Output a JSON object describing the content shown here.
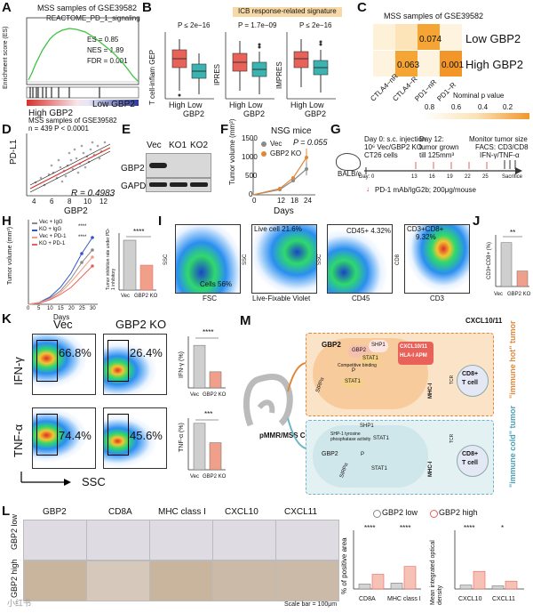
{
  "panels": {
    "A": {
      "label": "A",
      "title": "MSS samples of GSE39582",
      "signature": "REACTOME_PD_1_signaling",
      "es": "ES = 0.85",
      "nes": "NES = 1.89",
      "fdr": "FDR = 0.001",
      "ylabel": "Enrichment score (ES)",
      "left": "High GBP2",
      "right": "Low GBP2"
    },
    "B": {
      "label": "B",
      "banner": "ICB response-related signature",
      "plots": [
        {
          "p": "P ≤ 2e−16",
          "ylabel": "T cell-inflam GEP"
        },
        {
          "p": "P = 1.7e−09",
          "ylabel": "IPRES"
        },
        {
          "p": "P ≤ 2e−16",
          "ylabel": "IMPRES"
        }
      ],
      "xticks": [
        "High",
        "Low"
      ],
      "xlabel": "GBP2"
    },
    "C": {
      "label": "C",
      "title": "MSS samples of GSE39582",
      "rows": [
        "Low GBP2",
        "High GBP2"
      ],
      "cols": [
        "CTLA4−nR",
        "CTLA4−R",
        "PD1−nR",
        "PD1−R"
      ],
      "cells": [
        [
          "",
          "",
          "0.074",
          ""
        ],
        [
          "",
          "0.063",
          "",
          "0.001"
        ]
      ],
      "legend_title": "Nominal p value",
      "legend_ticks": [
        "0.8",
        "0.6",
        "0.4",
        "0.2"
      ]
    },
    "D": {
      "label": "D",
      "title": "MSS samples of GSE39582",
      "subtitle": "n = 439 P < 0.0001",
      "ylabel": "PD-L1",
      "xlabel": "GBP2",
      "r": "R = 0.4983",
      "xticks": [
        "4",
        "6",
        "8",
        "10",
        "12"
      ]
    },
    "E": {
      "label": "E",
      "lanes": [
        "Vec",
        "KO1",
        "KO2"
      ],
      "rows": [
        "GBP2",
        "GAPDH"
      ]
    },
    "F": {
      "label": "F",
      "title": "NSG mice",
      "legend": [
        "Vec",
        "GBP2 KO"
      ],
      "p": "P = 0.055",
      "ylabel": "Tumor volume (mm³)",
      "xlabel": "Days",
      "xticks": [
        "0",
        "12",
        "18",
        "24"
      ],
      "yticks": [
        "0",
        "500",
        "1000",
        "1500"
      ]
    },
    "G": {
      "label": "G",
      "mouse": "BALB/c",
      "step1": "Day 0: s.c. injection",
      "step1b": "10⁶ Vec/GBP2 KO",
      "step1c": "CT26 cells",
      "step2": "Day 12:",
      "step2b": "tumor grown",
      "step2c": "till 125mm³",
      "step3": "Monitor tumor size",
      "step3b": "FACS: CD3/CD8",
      "step3c": "IFN-γ/TNF-α",
      "days": [
        "Day: 0",
        "13",
        "16",
        "19",
        "22",
        "25",
        "Sacrifice"
      ],
      "treat": "PD-1  mAb/IgG2b; 200μg/mouse"
    },
    "H": {
      "label": "H",
      "legend": [
        "Vec + IgG",
        "KO + IgG",
        "Vec + PD-1",
        "KO + PD-1"
      ],
      "stars": [
        "****",
        "****"
      ],
      "ylabel": "Tumor volume (mm³)",
      "xlabel": "Days",
      "xticks": [
        "0",
        "5",
        "10",
        "15",
        "20",
        "25",
        "30"
      ],
      "yticks": [
        "0",
        "500",
        "1000",
        "1500",
        "2000"
      ],
      "bar_ylabel": "Tumor inhibition rate under PD-1 inhibitory",
      "bar_stars": "****",
      "bar_x": [
        "Vec",
        "GBP2 KO"
      ]
    },
    "I": {
      "label": "I",
      "plot1_pct": "Cells 56%",
      "plot1_x": "FSC",
      "plot1_y": "SSC",
      "plot2_pct": "Live cell 21.6%",
      "plot2_x": "Live-Fixable Violet",
      "plot2_y": "SSC",
      "plot3_pct": "CD45+ 4.32%",
      "plot3_x": "CD45",
      "plot3_y": "SSC",
      "plot4_pct": "CD3+CD8+",
      "plot4_pct2": "9.32%",
      "plot4_x": "CD3",
      "plot4_y": "CD8"
    },
    "J": {
      "label": "J",
      "ylabel": "CD3+CD8+ (%)",
      "stars": "**",
      "x": [
        "Vec",
        "GBP2 KO"
      ]
    },
    "K": {
      "label": "K",
      "cols": [
        "Vec",
        "GBP2 KO"
      ],
      "rows": [
        "IFN-γ",
        "TNF-α"
      ],
      "pcts": [
        [
          "66.8%",
          "26.4%"
        ],
        [
          "74.4%",
          "45.6%"
        ]
      ],
      "xlabel": "SSC",
      "bar1_ylabel": "IFN-γ (%)",
      "bar1_stars": "****",
      "bar2_ylabel": "TNF-α (%)",
      "bar2_stars": "***",
      "bar_x": [
        "Vec",
        "GBP2 KO"
      ]
    },
    "M": {
      "label": "M",
      "crc": "pMMR/MSS CRC",
      "hot_label": "\"immune hot\" tumor",
      "cold_label": "\"immune cold\" tumor",
      "cxcl": "CXCL10/11",
      "cxcl2": "CXCL10/11",
      "hla": "HLA-I APM",
      "gbp2": "GBP2",
      "shp1": "SHP1",
      "stat1": "STAT1",
      "comp": "Competitive binding",
      "mhc": "MHC-I",
      "tcr": "TCR",
      "cd8": "CD8+",
      "tcell": "T cell",
      "shp1act": "SHP-1 tyrosine phosphatase activity",
      "sirpa": "SIRPα",
      "p": "P"
    },
    "L": {
      "label": "L",
      "cols": [
        "GBP2",
        "CD8A",
        "MHC class I",
        "CXCL10",
        "CXCL11"
      ],
      "rows": [
        "GBP2 low",
        "GBP2 high"
      ],
      "scale": "Scale bar = 100μm",
      "legend": [
        "GBP2 low",
        "GBP2 high"
      ],
      "chart1_ylabel": "% of positive area",
      "chart1_x": [
        "CD8A",
        "MHC class I"
      ],
      "chart1_stars": [
        "****",
        "****"
      ],
      "chart2_ylabel": "Mean integrated optical density",
      "chart2_x": [
        "CXCL10",
        "CXCL11"
      ],
      "chart2_stars": [
        "****",
        "*"
      ],
      "watermark": "小红书"
    }
  },
  "colors": {
    "high": "#e8625a",
    "low": "#3bb3b0",
    "orange": "#e0883a",
    "gray": "#8a8a8a",
    "navy": "#2b3a8c",
    "salmon": "#f0a08a"
  },
  "chart_data": [
    {
      "type": "bar",
      "panel": "J",
      "categories": [
        "Vec",
        "GBP2 KO"
      ],
      "values": [
        1.7,
        0.6
      ],
      "ylabel": "CD3+CD8+ (%)"
    },
    {
      "type": "bar",
      "panel": "K-IFN",
      "categories": [
        "Vec",
        "GBP2 KO"
      ],
      "values": [
        66,
        25
      ],
      "ylabel": "IFN-γ (%)"
    },
    {
      "type": "bar",
      "panel": "K-TNF",
      "categories": [
        "Vec",
        "GBP2 KO"
      ],
      "values": [
        72,
        42
      ],
      "ylabel": "TNF-α (%)"
    },
    {
      "type": "bar",
      "panel": "L1",
      "categories": [
        "CD8A",
        "MHC class I"
      ],
      "series": [
        {
          "name": "GBP2 low",
          "values": [
            0.5,
            0.6
          ]
        },
        {
          "name": "GBP2 high",
          "values": [
            1.5,
            2.3
          ]
        }
      ],
      "ylabel": "% of positive area",
      "ylim": [
        0,
        6
      ]
    },
    {
      "type": "bar",
      "panel": "L2",
      "categories": [
        "CXCL10",
        "CXCL11"
      ],
      "series": [
        {
          "name": "GBP2 low",
          "values": [
            10,
            8
          ]
        },
        {
          "name": "GBP2 high",
          "values": [
            45,
            20
          ]
        }
      ],
      "ylabel": "Mean integrated optical density",
      "ylim": [
        0,
        150
      ]
    },
    {
      "type": "line",
      "panel": "F",
      "x": [
        0,
        12,
        18,
        24
      ],
      "series": [
        {
          "name": "Vec",
          "values": [
            0,
            150,
            400,
            650
          ]
        },
        {
          "name": "GBP2 KO",
          "values": [
            0,
            180,
            500,
            950
          ]
        }
      ],
      "ylabel": "Tumor volume (mm³)",
      "xlabel": "Days",
      "ylim": [
        0,
        1500
      ]
    },
    {
      "type": "line",
      "panel": "H",
      "x": [
        0,
        5,
        10,
        15,
        20,
        25,
        30
      ],
      "series": [
        {
          "name": "Vec + IgG",
          "values": [
            0,
            50,
            120,
            300,
            600,
            1000,
            1300
          ]
        },
        {
          "name": "KO + IgG",
          "values": [
            0,
            60,
            150,
            380,
            750,
            1200,
            1550
          ]
        },
        {
          "name": "Vec + PD-1",
          "values": [
            0,
            40,
            90,
            200,
            380,
            650,
            900
          ]
        },
        {
          "name": "KO + PD-1",
          "values": [
            0,
            50,
            110,
            260,
            520,
            850,
            1150
          ]
        }
      ],
      "ylabel": "Tumor volume (mm³)",
      "xlabel": "Days",
      "ylim": [
        0,
        2000
      ]
    }
  ]
}
